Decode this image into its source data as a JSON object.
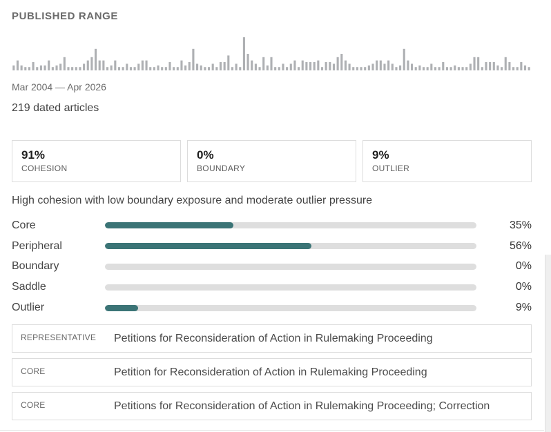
{
  "published": {
    "title": "PUBLISHED RANGE",
    "range": "Mar 2004 — Apr 2026",
    "count": "219 dated articles",
    "histogram": [
      3,
      6,
      3,
      2,
      2,
      5,
      2,
      3,
      3,
      6,
      2,
      3,
      4,
      8,
      2,
      2,
      2,
      2,
      4,
      6,
      8,
      13,
      6,
      6,
      2,
      3,
      6,
      2,
      2,
      4,
      2,
      2,
      4,
      6,
      6,
      2,
      2,
      3,
      2,
      2,
      5,
      2,
      2,
      6,
      3,
      5,
      13,
      4,
      3,
      2,
      2,
      4,
      2,
      5,
      5,
      9,
      2,
      4,
      2,
      20,
      10,
      6,
      4,
      2,
      8,
      3,
      8,
      2,
      2,
      4,
      2,
      4,
      6,
      2,
      6,
      5,
      5,
      5,
      6,
      2,
      5,
      5,
      4,
      8,
      10,
      6,
      4,
      2,
      2,
      2,
      2,
      3,
      4,
      6,
      6,
      4,
      6,
      4,
      2,
      3,
      13,
      6,
      4,
      2,
      3,
      2,
      2,
      4,
      2,
      2,
      5,
      2,
      2,
      3,
      2,
      2,
      2,
      4,
      8,
      8,
      2,
      5,
      5,
      5,
      3,
      2,
      8,
      5,
      2,
      2,
      5,
      3,
      2
    ]
  },
  "metrics": [
    {
      "value": "91%",
      "label": "COHESION"
    },
    {
      "value": "0%",
      "label": "BOUNDARY"
    },
    {
      "value": "9%",
      "label": "OUTLIER"
    }
  ],
  "summary": "High cohesion with low boundary exposure and moderate outlier pressure",
  "distribution": [
    {
      "label": "Core",
      "pct": "35%",
      "value": 0.345
    },
    {
      "label": "Peripheral",
      "pct": "56%",
      "value": 0.555
    },
    {
      "label": "Boundary",
      "pct": "0%",
      "value": 0
    },
    {
      "label": "Saddle",
      "pct": "0%",
      "value": 0
    },
    {
      "label": "Outlier",
      "pct": "9%",
      "value": 0.09
    }
  ],
  "articles": [
    {
      "tag": "REPRESENTATIVE",
      "title": "Petitions for Reconsideration of Action in Rulemaking Proceeding"
    },
    {
      "tag": "CORE",
      "title": "Petition for Reconsideration of Action in Rulemaking Proceeding"
    },
    {
      "tag": "CORE",
      "title": "Petitions for Reconsideration of Action in Rulemaking Proceeding; Correction"
    }
  ],
  "colors": {
    "accent": "#3b7476",
    "track": "#dedede",
    "histogram": "#aeb0b3"
  }
}
